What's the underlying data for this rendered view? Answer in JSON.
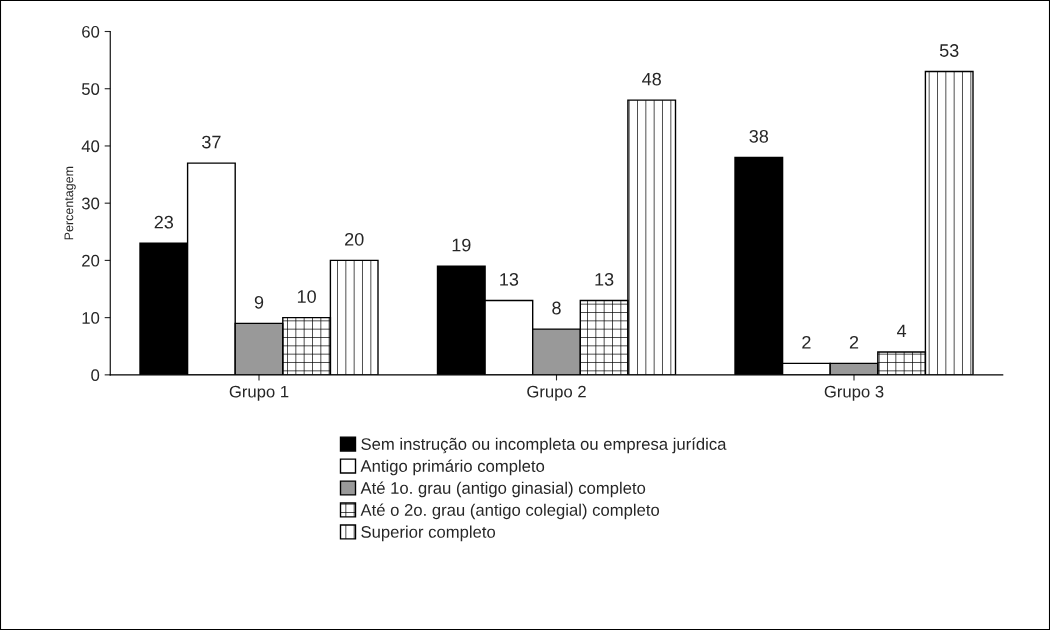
{
  "chart_data": {
    "type": "bar",
    "ylabel": "Percentagem",
    "categories": [
      "Grupo 1",
      "Grupo 2",
      "Grupo 3"
    ],
    "series": [
      {
        "name": "Sem instrução ou incompleta ou empresa jurídica",
        "color": "#000000",
        "values": [
          23,
          19,
          38
        ]
      },
      {
        "name": "Antigo primário completo",
        "color": "#ffffff",
        "values": [
          37,
          13,
          2
        ]
      },
      {
        "name": "Até 1o. grau (antigo ginasial) completo",
        "color": "#999999",
        "values": [
          9,
          8,
          2
        ]
      },
      {
        "name": "Até o 2o. grau (antigo colegial) completo",
        "color": "#000000",
        "values": [
          10,
          13,
          4
        ]
      },
      {
        "name": "Superior completo",
        "color": "#000000",
        "values": [
          20,
          48,
          53
        ]
      }
    ],
    "ylim": [
      0,
      60
    ],
    "yticks": [
      0,
      10,
      20,
      30,
      40,
      50,
      60
    ],
    "data_labels": true,
    "legend": "bottom",
    "grid": false
  }
}
